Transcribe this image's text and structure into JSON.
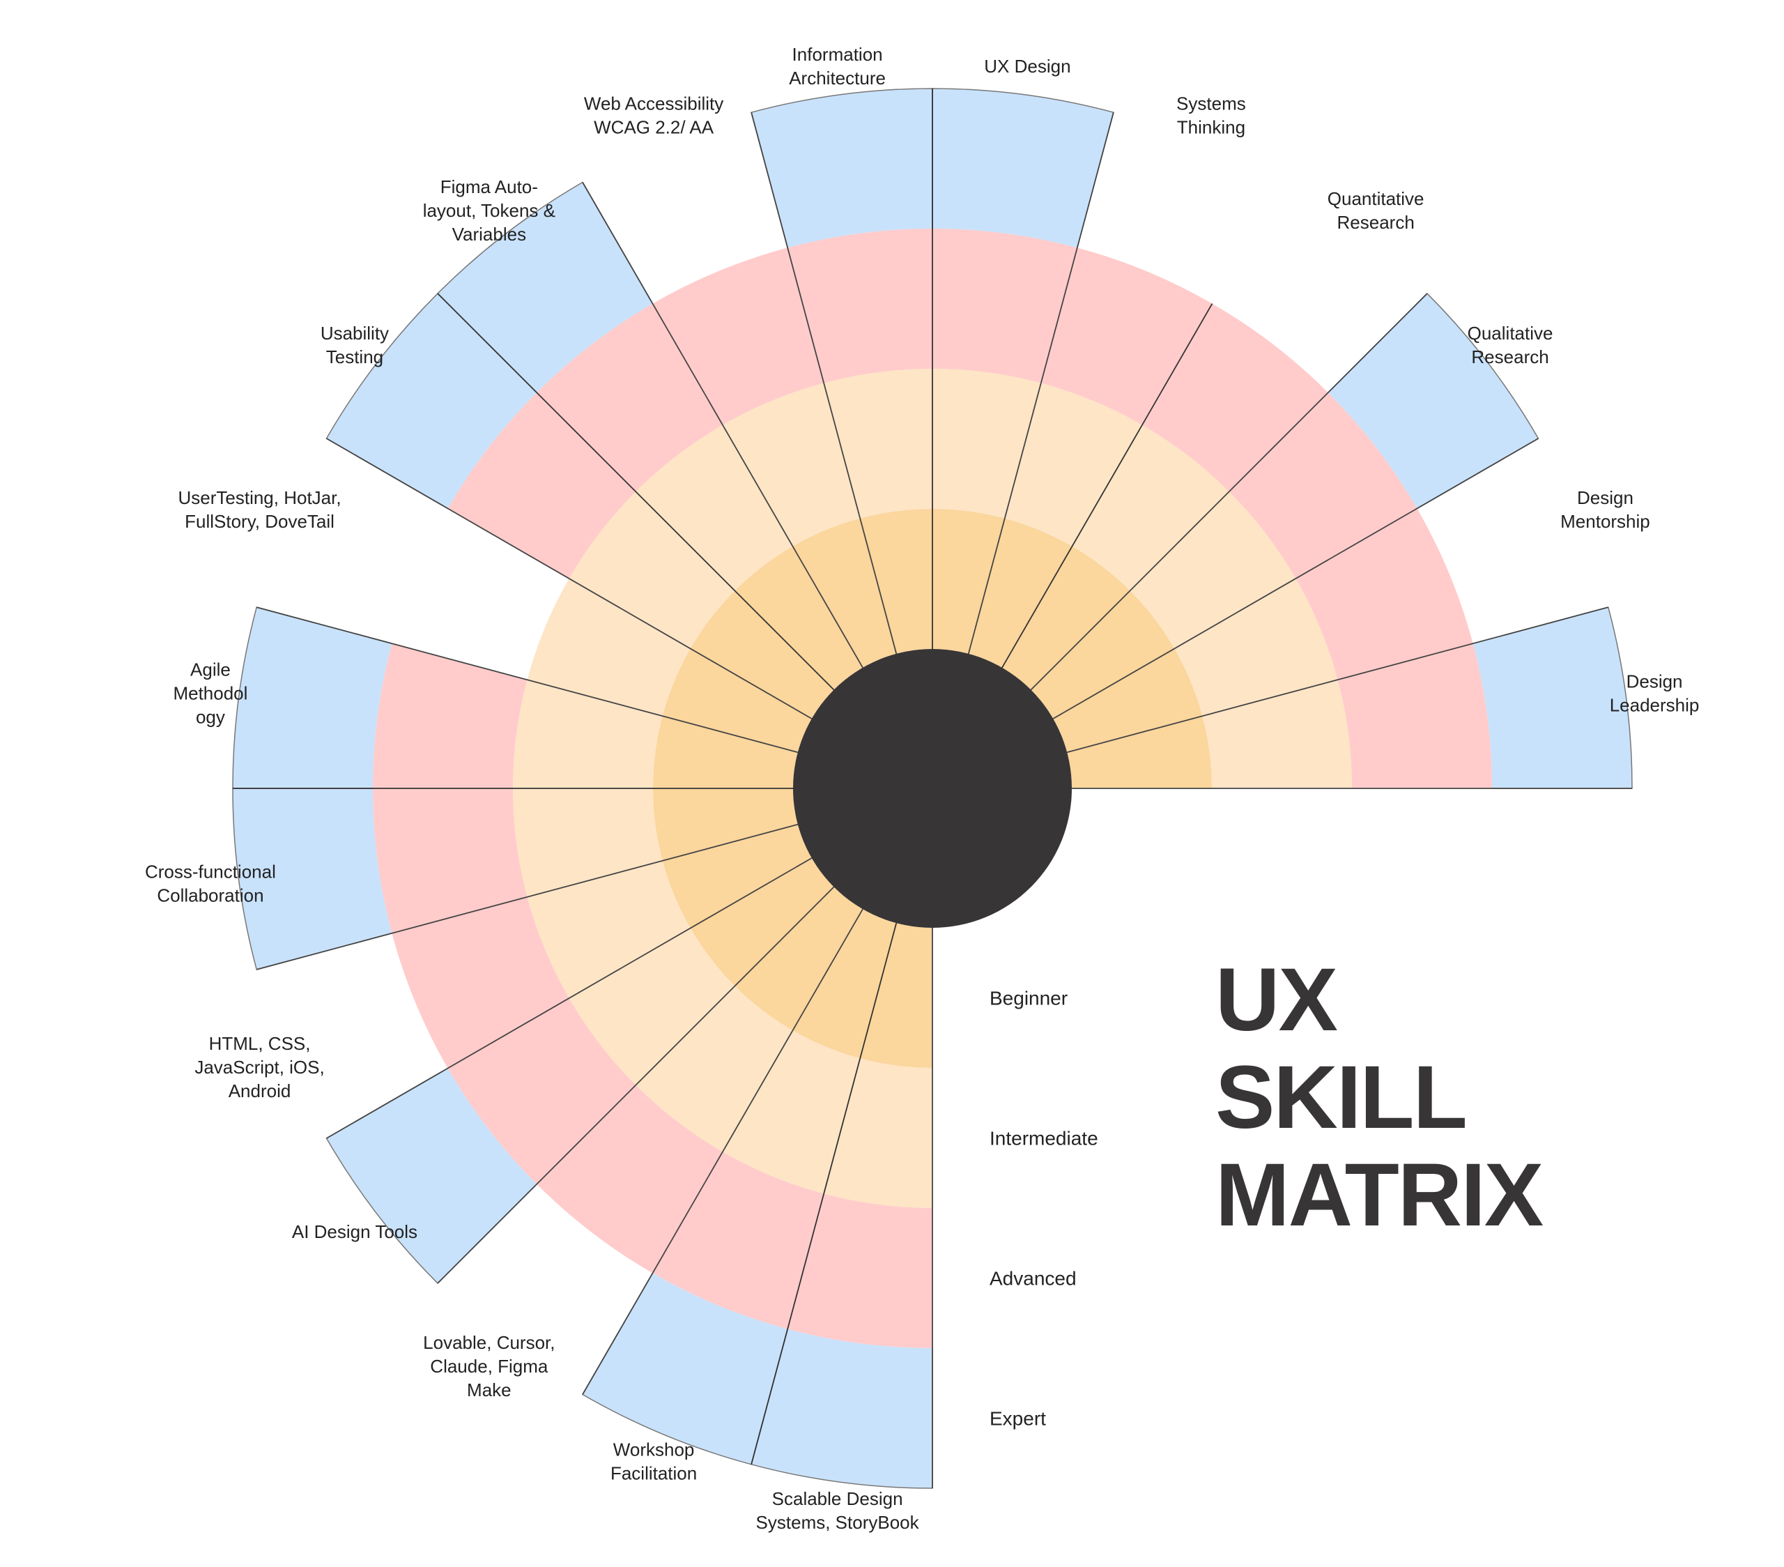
{
  "chart_data": {
    "type": "polar-bar",
    "title": [
      "UX",
      "SKILL",
      "MATRIX"
    ],
    "levels": [
      "Beginner",
      "Intermediate",
      "Advanced",
      "Expert"
    ],
    "level_colors": [
      "#fbd69d",
      "#fde5c6",
      "#ffcccb",
      "#c9e2fb"
    ],
    "hub_color": "#373536",
    "skills": [
      {
        "lines": [
          "Design",
          "Leadership"
        ],
        "level": 4
      },
      {
        "lines": [
          "Design",
          "Mentorship"
        ],
        "level": 3
      },
      {
        "lines": [
          "Qualitative",
          "Research"
        ],
        "level": 4
      },
      {
        "lines": [
          "Quantitative",
          "Research"
        ],
        "level": 3
      },
      {
        "lines": [
          "Systems",
          "Thinking"
        ],
        "level": 3
      },
      {
        "lines": [
          "UX Design"
        ],
        "level": 4
      },
      {
        "lines": [
          "Information",
          "Architecture"
        ],
        "level": 4
      },
      {
        "lines": [
          "Web Accessibility",
          "WCAG 2.2/ AA"
        ],
        "level": 3
      },
      {
        "lines": [
          "Figma Auto-",
          "layout, Tokens &",
          "Variables"
        ],
        "level": 4
      },
      {
        "lines": [
          "Usability",
          "Testing"
        ],
        "level": 4
      },
      {
        "lines": [
          "UserTesting, HotJar,",
          "FullStory, DoveTail"
        ],
        "level": 2
      },
      {
        "lines": [
          "Agile",
          "Methodol",
          "ogy"
        ],
        "level": 4
      },
      {
        "lines": [
          "Cross-functional",
          "Collaboration"
        ],
        "level": 4
      },
      {
        "lines": [
          "HTML, CSS,",
          "JavaScript, iOS,",
          "Android"
        ],
        "level": 3
      },
      {
        "lines": [
          "AI Design Tools"
        ],
        "level": 4
      },
      {
        "lines": [
          "Lovable, Cursor,",
          "Claude, Figma",
          "Make"
        ],
        "level": 3
      },
      {
        "lines": [
          "Workshop",
          "Facilitation"
        ],
        "level": 4
      },
      {
        "lines": [
          "Scalable Design",
          "Systems, StoryBook"
        ],
        "level": 4
      }
    ]
  }
}
